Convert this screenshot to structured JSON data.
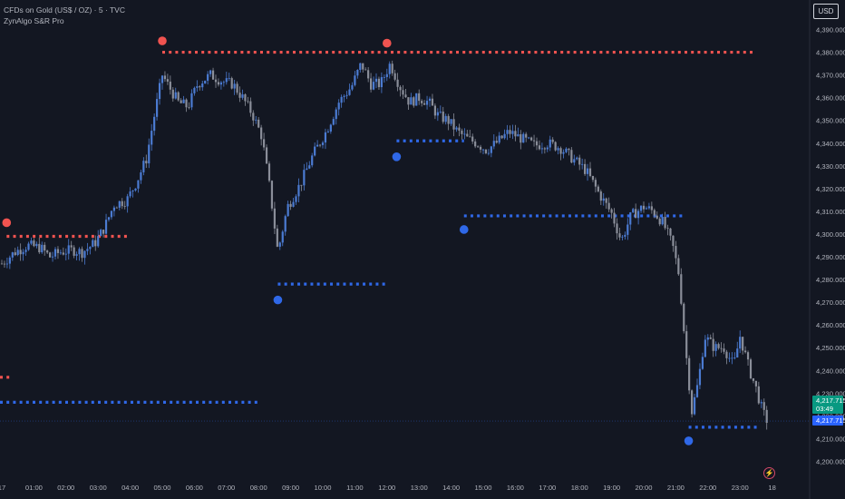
{
  "header": {
    "symbol_line": "CFDs on Gold (US$ / OZ) · 5 · TVC",
    "indicator": "ZynAlgo S&R Pro",
    "currency": "USD"
  },
  "colors": {
    "bg": "#131722",
    "up": "#4b7bd2",
    "down": "#8a8e99",
    "resistance": "#f05350",
    "support": "#2f68e8",
    "axis_text": "#b2b5be",
    "price_tag": "#089981",
    "price_tag2": "#2962ff"
  },
  "chart_data": {
    "type": "candlestick",
    "ylim": [
      4195,
      4397
    ],
    "yticks": [
      "4,200.000",
      "4,210.000",
      "4,220.000",
      "4,230.000",
      "4,240.000",
      "4,250.000",
      "4,260.000",
      "4,270.000",
      "4,280.000",
      "4,290.000",
      "4,300.000",
      "4,310.000",
      "4,320.000",
      "4,330.000",
      "4,340.000",
      "4,350.000",
      "4,360.000",
      "4,370.000",
      "4,380.000",
      "4,390.000"
    ],
    "yticks_values": [
      4200,
      4210,
      4220,
      4230,
      4240,
      4250,
      4260,
      4270,
      4280,
      4290,
      4300,
      4310,
      4320,
      4330,
      4340,
      4350,
      4360,
      4370,
      4380,
      4390
    ],
    "xticks": [
      "17",
      "01:00",
      "02:00",
      "03:00",
      "04:00",
      "05:00",
      "06:00",
      "07:00",
      "08:00",
      "09:00",
      "10:00",
      "11:00",
      "12:00",
      "13:00",
      "14:00",
      "15:00",
      "16:00",
      "17:00",
      "18:00",
      "19:00",
      "20:00",
      "21:00",
      "22:00",
      "23:00",
      "18"
    ],
    "xticks_hours": [
      0,
      1,
      2,
      3,
      4,
      5,
      6,
      7,
      8,
      9,
      10,
      11,
      12,
      13,
      14,
      15,
      16,
      17,
      18,
      19,
      20,
      21,
      22,
      23,
      24
    ],
    "price_path": [
      [
        0,
        4287
      ],
      [
        0.4,
        4292
      ],
      [
        0.8,
        4295
      ],
      [
        1.2,
        4294
      ],
      [
        1.5,
        4290
      ],
      [
        1.8,
        4292
      ],
      [
        2.2,
        4293
      ],
      [
        2.5,
        4292
      ],
      [
        2.9,
        4296
      ],
      [
        3.2,
        4303
      ],
      [
        3.5,
        4313
      ],
      [
        3.9,
        4315
      ],
      [
        4.2,
        4323
      ],
      [
        4.5,
        4333
      ],
      [
        4.75,
        4352
      ],
      [
        5.0,
        4370
      ],
      [
        5.2,
        4365
      ],
      [
        5.5,
        4358
      ],
      [
        5.8,
        4356
      ],
      [
        6.1,
        4366
      ],
      [
        6.5,
        4370
      ],
      [
        6.9,
        4367
      ],
      [
        7.2,
        4366
      ],
      [
        7.5,
        4360
      ],
      [
        7.8,
        4353
      ],
      [
        8.1,
        4343
      ],
      [
        8.35,
        4320
      ],
      [
        8.6,
        4292
      ],
      [
        8.9,
        4312
      ],
      [
        9.3,
        4322
      ],
      [
        9.7,
        4335
      ],
      [
        10.1,
        4345
      ],
      [
        10.5,
        4358
      ],
      [
        10.9,
        4365
      ],
      [
        11.2,
        4375
      ],
      [
        11.5,
        4366
      ],
      [
        11.8,
        4366
      ],
      [
        12.1,
        4375
      ],
      [
        12.4,
        4365
      ],
      [
        12.7,
        4358
      ],
      [
        13.0,
        4360
      ],
      [
        13.3,
        4358
      ],
      [
        13.6,
        4352
      ],
      [
        13.9,
        4350
      ],
      [
        14.2,
        4345
      ],
      [
        14.5,
        4342
      ],
      [
        14.8,
        4340
      ],
      [
        15.1,
        4337
      ],
      [
        15.4,
        4340
      ],
      [
        15.8,
        4345
      ],
      [
        16.2,
        4342
      ],
      [
        16.6,
        4339
      ],
      [
        17.0,
        4340
      ],
      [
        17.4,
        4338
      ],
      [
        17.8,
        4333
      ],
      [
        18.2,
        4328
      ],
      [
        18.6,
        4318
      ],
      [
        19.0,
        4309
      ],
      [
        19.3,
        4297
      ],
      [
        19.6,
        4308
      ],
      [
        20.0,
        4312
      ],
      [
        20.3,
        4310
      ],
      [
        20.6,
        4305
      ],
      [
        20.9,
        4295
      ],
      [
        21.1,
        4282
      ],
      [
        21.3,
        4250
      ],
      [
        21.5,
        4222
      ],
      [
        21.7,
        4235
      ],
      [
        21.9,
        4255
      ],
      [
        22.2,
        4250
      ],
      [
        22.5,
        4250
      ],
      [
        22.8,
        4242
      ],
      [
        23.0,
        4255
      ],
      [
        23.3,
        4240
      ],
      [
        23.5,
        4232
      ],
      [
        23.7,
        4222
      ],
      [
        23.85,
        4217.7
      ]
    ],
    "levels": [
      {
        "type": "resistance",
        "price": 4380,
        "from_hour": 5.0,
        "to_hour": 23.5
      },
      {
        "type": "resistance",
        "price": 4299,
        "from_hour": 0.15,
        "to_hour": 3.9
      },
      {
        "type": "resistance",
        "price": 4237,
        "from_hour": -0.2,
        "to_hour": 0.3
      },
      {
        "type": "support",
        "price": 4341,
        "from_hour": 12.3,
        "to_hour": 14.4
      },
      {
        "type": "support",
        "price": 4308,
        "from_hour": 14.4,
        "to_hour": 21.3
      },
      {
        "type": "support",
        "price": 4278,
        "from_hour": 8.6,
        "to_hour": 12.0
      },
      {
        "type": "support",
        "price": 4226,
        "from_hour": -0.2,
        "to_hour": 8.0
      },
      {
        "type": "support",
        "price": 4215,
        "from_hour": 21.4,
        "to_hour": 23.6
      }
    ],
    "markers": [
      {
        "type": "resistance",
        "hour": 0.15,
        "price": 4305
      },
      {
        "type": "resistance",
        "hour": 5.0,
        "price": 4385
      },
      {
        "type": "resistance",
        "hour": 12.0,
        "price": 4384
      },
      {
        "type": "support",
        "hour": 8.6,
        "price": 4271
      },
      {
        "type": "support",
        "hour": 12.3,
        "price": 4334
      },
      {
        "type": "support",
        "hour": 14.4,
        "price": 4302
      },
      {
        "type": "support",
        "hour": 21.4,
        "price": 4209
      }
    ],
    "last_price": "4,217.715",
    "countdown": "03:49",
    "last_value": 4217.715
  }
}
